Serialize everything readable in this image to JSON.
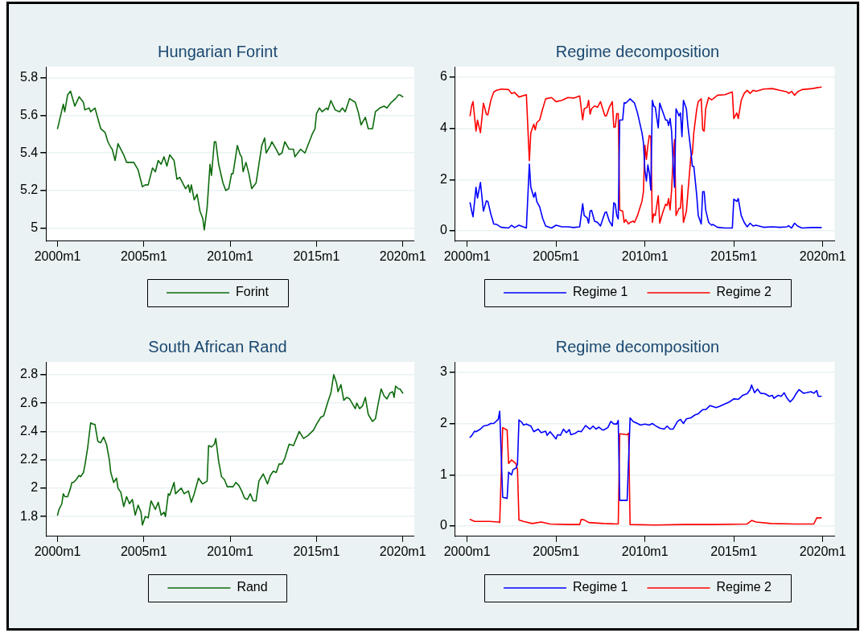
{
  "chart_data": [
    {
      "type": "line",
      "title": "Hungarian Forint",
      "marker": "none",
      "grid": "y",
      "legend": "bottom",
      "x": [
        "2000-01",
        "2000-05",
        "2000-06",
        "2000-08",
        "2000-10",
        "2001-01",
        "2001-04",
        "2001-07",
        "2001-08",
        "2001-11",
        "2001-12",
        "2002-03",
        "2002-07",
        "2002-10",
        "2002-12",
        "2003-02",
        "2003-03",
        "2003-05",
        "2003-07",
        "2003-11",
        "2004-01",
        "2004-06",
        "2004-09",
        "2004-12",
        "2005-02",
        "2005-04",
        "2005-07",
        "2005-09",
        "2005-11",
        "2006-01",
        "2006-03",
        "2006-05",
        "2006-07",
        "2006-10",
        "2006-12",
        "2007-02",
        "2007-06",
        "2007-08",
        "2007-09",
        "2007-10",
        "2007-12",
        "2008-02",
        "2008-04",
        "2008-06",
        "2008-07",
        "2008-09",
        "2008-11",
        "2008-12",
        "2009-02",
        "2009-03",
        "2009-05",
        "2009-08",
        "2009-10",
        "2009-12",
        "2010-02",
        "2010-03",
        "2010-06",
        "2010-08",
        "2010-09",
        "2010-10",
        "2010-12",
        "2011-02",
        "2011-04",
        "2011-05",
        "2011-07",
        "2011-09",
        "2011-11",
        "2012-01",
        "2012-02",
        "2012-05",
        "2012-06",
        "2012-09",
        "2012-11",
        "2013-01",
        "2013-03",
        "2013-06",
        "2013-09",
        "2013-10",
        "2013-12",
        "2014-02",
        "2014-05",
        "2014-08",
        "2014-10",
        "2014-12",
        "2015-01",
        "2015-03",
        "2015-05",
        "2015-08",
        "2015-09",
        "2015-11",
        "2016-02",
        "2016-05",
        "2016-07",
        "2016-09",
        "2016-12",
        "2017-04",
        "2017-06",
        "2017-08",
        "2017-11",
        "2018-01",
        "2018-04",
        "2018-06",
        "2018-09",
        "2018-12",
        "2019-02",
        "2019-05",
        "2019-08",
        "2019-10",
        "2019-11",
        "2020-01"
      ],
      "series": [
        {
          "name": "Forint",
          "color": "#0d6b0d",
          "values": [
            5.53,
            5.66,
            5.62,
            5.71,
            5.73,
            5.65,
            5.7,
            5.67,
            5.63,
            5.64,
            5.62,
            5.64,
            5.53,
            5.51,
            5.46,
            5.43,
            5.42,
            5.36,
            5.45,
            5.39,
            5.35,
            5.35,
            5.31,
            5.22,
            5.23,
            5.23,
            5.32,
            5.3,
            5.36,
            5.34,
            5.38,
            5.33,
            5.39,
            5.36,
            5.26,
            5.27,
            5.21,
            5.23,
            5.19,
            5.23,
            5.15,
            5.18,
            5.09,
            5.05,
            4.99,
            5.11,
            5.34,
            5.28,
            5.46,
            5.46,
            5.34,
            5.24,
            5.2,
            5.21,
            5.29,
            5.29,
            5.44,
            5.39,
            5.38,
            5.3,
            5.35,
            5.29,
            5.21,
            5.22,
            5.24,
            5.34,
            5.44,
            5.48,
            5.4,
            5.44,
            5.46,
            5.42,
            5.39,
            5.4,
            5.46,
            5.42,
            5.42,
            5.38,
            5.4,
            5.42,
            5.4,
            5.46,
            5.5,
            5.53,
            5.61,
            5.64,
            5.62,
            5.64,
            5.63,
            5.68,
            5.63,
            5.62,
            5.64,
            5.62,
            5.69,
            5.67,
            5.62,
            5.55,
            5.59,
            5.53,
            5.53,
            5.62,
            5.64,
            5.65,
            5.64,
            5.67,
            5.69,
            5.71,
            5.71,
            5.7
          ]
        }
      ],
      "xlim": [
        "1999-05",
        "2020-09"
      ],
      "xticks": [
        {
          "value": "2000-01",
          "label": "2000m1"
        },
        {
          "value": "2005-01",
          "label": "2005m1"
        },
        {
          "value": "2010-01",
          "label": "2010m1"
        },
        {
          "value": "2015-01",
          "label": "2015m1"
        },
        {
          "value": "2020-01",
          "label": "2020m1"
        }
      ],
      "ylim": [
        4.93,
        5.86
      ],
      "yticks": [
        5,
        5.2,
        5.4,
        5.6,
        5.8
      ]
    },
    {
      "type": "line",
      "title": "Regime decomposition",
      "marker": "none",
      "grid": "y",
      "legend": "bottom",
      "x": [
        "2000-03",
        "2000-04",
        "2000-05",
        "2000-07",
        "2000-08",
        "2000-10",
        "2000-12",
        "2001-02",
        "2001-03",
        "2001-05",
        "2001-07",
        "2001-09",
        "2001-12",
        "2002-05",
        "2002-07",
        "2002-09",
        "2002-12",
        "2003-05",
        "2003-07",
        "2003-08",
        "2003-10",
        "2003-11",
        "2003-12",
        "2004-02",
        "2004-04",
        "2004-06",
        "2004-10",
        "2005-01",
        "2005-05",
        "2005-09",
        "2006-01",
        "2006-05",
        "2006-07",
        "2006-08",
        "2006-10",
        "2006-11",
        "2006-12",
        "2007-01",
        "2007-03",
        "2007-05",
        "2007-07",
        "2007-10",
        "2007-11",
        "2008-01",
        "2008-03",
        "2008-04",
        "2008-05",
        "2008-06",
        "2008-07",
        "2008-08",
        "2008-10",
        "2008-11",
        "2008-12",
        "2009-02",
        "2009-03",
        "2009-05",
        "2009-06",
        "2009-08",
        "2009-11",
        "2009-12",
        "2010-01",
        "2010-02",
        "2010-03",
        "2010-04",
        "2010-05",
        "2010-06",
        "2010-07",
        "2010-08",
        "2010-10",
        "2010-11",
        "2011-01",
        "2011-03",
        "2011-04",
        "2011-05",
        "2011-06",
        "2011-07",
        "2011-08",
        "2011-09",
        "2011-10",
        "2011-12",
        "2012-01",
        "2012-02",
        "2012-03",
        "2012-05",
        "2012-06",
        "2012-08",
        "2012-09",
        "2012-10",
        "2012-12",
        "2013-01",
        "2013-03",
        "2013-04",
        "2013-05",
        "2013-06",
        "2013-08",
        "2013-10",
        "2013-11",
        "2014-02",
        "2014-07",
        "2014-12",
        "2015-01",
        "2015-03",
        "2015-04",
        "2015-06",
        "2015-08",
        "2015-10",
        "2015-12",
        "2016-02",
        "2016-04",
        "2016-09",
        "2017-03",
        "2017-08",
        "2018-01",
        "2018-02",
        "2018-04",
        "2018-06",
        "2018-08",
        "2018-11",
        "2019-06",
        "2019-12"
      ],
      "series": [
        {
          "name": "Regime 1",
          "color": "#0000ff",
          "values": [
            1.1,
            0.8,
            0.55,
            1.7,
            1.28,
            1.89,
            0.77,
            1.17,
            1.15,
            0.66,
            0.27,
            0.25,
            0.14,
            0.11,
            0.22,
            0.13,
            0.22,
            0.11,
            2.6,
            1.7,
            1.31,
            1.5,
            1.15,
            0.93,
            0.49,
            0.19,
            0.11,
            0.22,
            0.16,
            0.16,
            0.13,
            0.16,
            1.06,
            0.6,
            0.51,
            0.3,
            0.77,
            0.8,
            0.38,
            0.33,
            0.19,
            0.71,
            0.74,
            0.38,
            0.19,
            1.1,
            1.04,
            0.6,
            0.47,
            4.32,
            4.33,
            5.0,
            4.98,
            5.09,
            5.15,
            5.04,
            4.98,
            4.6,
            3.83,
            3.45,
            2.36,
            1.94,
            2.57,
            2.25,
            1.59,
            5.09,
            4.87,
            4.82,
            4.02,
            4.98,
            4.65,
            4.32,
            4.32,
            4.11,
            4.38,
            3.89,
            2.68,
            1.7,
            4.76,
            4.49,
            4.6,
            3.67,
            5.09,
            4.76,
            4.11,
            3.12,
            2.52,
            2.52,
            1.37,
            0.6,
            0.27,
            1.53,
            1.53,
            0.82,
            0.33,
            0.22,
            0.25,
            0.14,
            0.11,
            0.11,
            1.24,
            1.15,
            1.26,
            0.6,
            0.33,
            0.16,
            0.3,
            0.19,
            0.22,
            0.14,
            0.16,
            0.14,
            0.16,
            0.2,
            0.11,
            0.3,
            0.19,
            0.11,
            0.13,
            0.13
          ]
        },
        {
          "name": "Regime 2",
          "color": "#ff0000",
          "values": [
            4.49,
            4.87,
            5.04,
            3.89,
            4.32,
            3.83,
            4.98,
            4.55,
            4.52,
            5.09,
            5.42,
            5.48,
            5.53,
            5.51,
            5.36,
            5.4,
            5.22,
            5.31,
            2.74,
            3.83,
            4.16,
            3.94,
            4.22,
            4.33,
            4.76,
            5.15,
            5.2,
            5.04,
            5.09,
            5.2,
            5.18,
            5.26,
            4.33,
            4.76,
            4.82,
            5.09,
            4.55,
            4.76,
            4.87,
            4.82,
            5.04,
            4.49,
            4.49,
            4.82,
            5.04,
            4.05,
            4.05,
            4.57,
            4.57,
            0.82,
            0.77,
            0.33,
            0.44,
            0.27,
            0.33,
            0.38,
            0.33,
            0.6,
            1.15,
            1.53,
            3.34,
            2.79,
            3.34,
            3.72,
            3.67,
            0.33,
            0.66,
            0.6,
            1.37,
            0.3,
            0.71,
            1.04,
            0.99,
            1.26,
            0.82,
            1.59,
            2.79,
            3.56,
            0.6,
            0.88,
            0.88,
            1.78,
            0.33,
            0.77,
            1.48,
            2.9,
            3.01,
            3.83,
            4.76,
            5.04,
            5.15,
            3.94,
            3.89,
            4.76,
            5.2,
            5.11,
            5.15,
            5.29,
            5.31,
            5.42,
            4.38,
            4.6,
            4.38,
            5.09,
            5.36,
            5.48,
            5.36,
            5.48,
            5.44,
            5.53,
            5.55,
            5.48,
            5.42,
            5.36,
            5.44,
            5.29,
            5.42,
            5.51,
            5.55,
            5.61
          ]
        }
      ],
      "xlim": [
        "1999-05",
        "2020-09"
      ],
      "xticks": [
        {
          "value": "2000-01",
          "label": "2000m1"
        },
        {
          "value": "2005-01",
          "label": "2005m1"
        },
        {
          "value": "2010-01",
          "label": "2010m1"
        },
        {
          "value": "2015-01",
          "label": "2015m1"
        },
        {
          "value": "2020-01",
          "label": "2020m1"
        }
      ],
      "ylim": [
        -0.4,
        6.4
      ],
      "yticks": [
        0,
        2,
        4,
        6
      ]
    },
    {
      "type": "line",
      "title": "South African Rand",
      "marker": "none",
      "grid": "y",
      "legend": "bottom",
      "x": [
        "2000-01",
        "2000-02",
        "2000-04",
        "2000-05",
        "2000-06",
        "2000-08",
        "2000-10",
        "2000-11",
        "2000-12",
        "2001-02",
        "2001-04",
        "2001-05",
        "2001-07",
        "2001-08",
        "2001-10",
        "2001-12",
        "2002-02",
        "2002-03",
        "2002-05",
        "2002-07",
        "2002-09",
        "2002-11",
        "2003-01",
        "2003-02",
        "2003-04",
        "2003-06",
        "2003-07",
        "2003-09",
        "2003-11",
        "2004-01",
        "2004-03",
        "2004-05",
        "2004-07",
        "2004-09",
        "2004-11",
        "2004-12",
        "2005-02",
        "2005-04",
        "2005-06",
        "2005-08",
        "2005-09",
        "2005-11",
        "2006-01",
        "2006-03",
        "2006-04",
        "2006-06",
        "2006-07",
        "2006-10",
        "2006-11",
        "2007-01",
        "2007-03",
        "2007-05",
        "2007-08",
        "2007-10",
        "2007-12",
        "2008-03",
        "2008-05",
        "2008-06",
        "2008-09",
        "2008-10",
        "2008-12",
        "2009-02",
        "2009-03",
        "2009-05",
        "2009-07",
        "2009-09",
        "2009-11",
        "2010-02",
        "2010-03",
        "2010-05",
        "2010-07",
        "2010-09",
        "2010-11",
        "2011-01",
        "2011-03",
        "2011-05",
        "2011-07",
        "2011-09",
        "2011-12",
        "2012-03",
        "2012-05",
        "2012-07",
        "2012-09",
        "2012-11",
        "2013-01",
        "2013-03",
        "2013-06",
        "2013-09",
        "2014-01",
        "2014-04",
        "2014-07",
        "2014-11",
        "2015-01",
        "2015-04",
        "2015-06",
        "2015-09",
        "2015-11",
        "2016-01",
        "2016-03",
        "2016-04",
        "2016-06",
        "2016-08",
        "2016-10",
        "2016-12",
        "2017-04",
        "2017-05",
        "2017-07",
        "2017-09",
        "2017-11",
        "2018-01",
        "2018-04",
        "2018-06",
        "2018-08",
        "2018-10",
        "2018-12",
        "2019-02",
        "2019-04",
        "2019-06",
        "2019-07",
        "2019-08",
        "2019-10",
        "2019-11",
        "2020-01"
      ],
      "series": [
        {
          "name": "Rand",
          "color": "#0d6b0d",
          "values": [
            1.81,
            1.85,
            1.89,
            1.96,
            1.94,
            1.94,
            2.0,
            2.04,
            2.04,
            2.06,
            2.09,
            2.08,
            2.11,
            2.16,
            2.29,
            2.46,
            2.45,
            2.45,
            2.33,
            2.32,
            2.36,
            2.31,
            2.2,
            2.11,
            2.04,
            2.07,
            2.0,
            1.97,
            1.87,
            1.94,
            1.89,
            1.92,
            1.81,
            1.88,
            1.83,
            1.74,
            1.8,
            1.79,
            1.91,
            1.87,
            1.85,
            1.9,
            1.81,
            1.83,
            1.8,
            1.96,
            1.95,
            2.04,
            1.96,
            1.98,
            2.0,
            1.96,
            1.98,
            1.9,
            1.96,
            2.07,
            2.04,
            2.03,
            2.05,
            2.3,
            2.29,
            2.31,
            2.35,
            2.19,
            2.08,
            2.06,
            2.01,
            2.01,
            2.01,
            2.04,
            2.02,
            1.98,
            1.93,
            1.92,
            1.96,
            1.91,
            1.91,
            2.05,
            2.1,
            2.03,
            2.09,
            2.12,
            2.11,
            2.17,
            2.17,
            2.21,
            2.31,
            2.3,
            2.4,
            2.35,
            2.37,
            2.41,
            2.45,
            2.5,
            2.51,
            2.61,
            2.67,
            2.8,
            2.74,
            2.68,
            2.73,
            2.62,
            2.64,
            2.63,
            2.56,
            2.6,
            2.56,
            2.58,
            2.64,
            2.52,
            2.47,
            2.49,
            2.6,
            2.7,
            2.65,
            2.63,
            2.67,
            2.68,
            2.64,
            2.72,
            2.7,
            2.7,
            2.67
          ]
        }
      ],
      "xlim": [
        "1999-05",
        "2020-09"
      ],
      "xticks": [
        {
          "value": "2000-01",
          "label": "2000m1"
        },
        {
          "value": "2005-01",
          "label": "2005m1"
        },
        {
          "value": "2010-01",
          "label": "2010m1"
        },
        {
          "value": "2015-01",
          "label": "2015m1"
        },
        {
          "value": "2020-01",
          "label": "2020m1"
        }
      ],
      "ylim": [
        1.66,
        2.89
      ],
      "yticks": [
        1.8,
        2,
        2.2,
        2.4,
        2.6,
        2.8
      ]
    },
    {
      "type": "line",
      "title": "Regime decomposition",
      "marker": "none",
      "grid": "y",
      "legend": "bottom",
      "series": [
        {
          "name": "Regime 1",
          "color": "#0000ff",
          "x": [
            "2000-03",
            "2000-04",
            "2000-06",
            "2000-07",
            "2000-10",
            "2000-12",
            "2001-03",
            "2001-05",
            "2001-07",
            "2001-10",
            "2001-11",
            "2002-01",
            "2002-04",
            "2002-05",
            "2002-07",
            "2002-08",
            "2002-10",
            "2002-11",
            "2002-12",
            "2003-02",
            "2003-03",
            "2003-05",
            "2003-08",
            "2003-10",
            "2004-01",
            "2004-03",
            "2004-06",
            "2004-07",
            "2004-09",
            "2004-11",
            "2005-01",
            "2005-02",
            "2005-04",
            "2005-06",
            "2005-08",
            "2005-10",
            "2005-11",
            "2006-02",
            "2006-04",
            "2006-06",
            "2006-08",
            "2006-09",
            "2006-12",
            "2007-02",
            "2007-04",
            "2007-06",
            "2007-08",
            "2007-09",
            "2007-12",
            "2008-02",
            "2008-04",
            "2008-06",
            "2008-07",
            "2008-08",
            "2009-01",
            "2009-03",
            "2009-05",
            "2009-08",
            "2009-10",
            "2010-01",
            "2010-04",
            "2010-06",
            "2010-08",
            "2010-11",
            "2011-02",
            "2011-04",
            "2011-06",
            "2011-08",
            "2011-11",
            "2012-01",
            "2012-03",
            "2012-05",
            "2012-08",
            "2012-11",
            "2013-01",
            "2013-04",
            "2013-06",
            "2013-09",
            "2014-01",
            "2014-03",
            "2014-06",
            "2014-10",
            "2015-01",
            "2015-04",
            "2015-07",
            "2015-10",
            "2015-12",
            "2016-01",
            "2016-03",
            "2016-05",
            "2016-07",
            "2016-10",
            "2017-01",
            "2017-03",
            "2017-04",
            "2017-07",
            "2017-09",
            "2017-11",
            "2018-01",
            "2018-03",
            "2018-05",
            "2018-07",
            "2018-09",
            "2018-12",
            "2019-02",
            "2019-05",
            "2019-07",
            "2019-09",
            "2019-10",
            "2019-12"
          ],
          "values": [
            1.73,
            1.76,
            1.85,
            1.84,
            1.89,
            1.95,
            1.97,
            2.0,
            2.0,
            2.08,
            2.24,
            0.56,
            0.54,
            1.05,
            1.0,
            1.1,
            1.13,
            1.21,
            2.07,
            2.02,
            1.97,
            1.99,
            1.95,
            1.84,
            1.89,
            1.82,
            1.85,
            1.77,
            1.84,
            1.77,
            1.7,
            1.78,
            1.77,
            1.89,
            1.82,
            1.88,
            1.78,
            1.81,
            1.85,
            1.84,
            1.92,
            1.96,
            1.89,
            1.95,
            1.89,
            1.93,
            1.88,
            1.87,
            1.92,
            2.04,
            1.99,
            1.99,
            2.06,
            0.5,
            0.5,
            2.11,
            2.04,
            2.0,
            1.97,
            1.99,
            1.97,
            2.0,
            1.96,
            1.91,
            1.89,
            1.95,
            1.89,
            1.89,
            2.04,
            2.08,
            2.0,
            2.09,
            2.11,
            2.17,
            2.19,
            2.27,
            2.27,
            2.35,
            2.31,
            2.33,
            2.37,
            2.42,
            2.48,
            2.47,
            2.55,
            2.58,
            2.66,
            2.75,
            2.6,
            2.67,
            2.59,
            2.58,
            2.53,
            2.55,
            2.49,
            2.55,
            2.53,
            2.6,
            2.49,
            2.42,
            2.48,
            2.58,
            2.66,
            2.59,
            2.6,
            2.62,
            2.59,
            2.64,
            2.53,
            2.53
          ]
        },
        {
          "name": "Regime 2",
          "color": "#ff0000",
          "x": [
            "2000-03",
            "2000-06",
            "2000-10",
            "2001-04",
            "2001-10",
            "2001-11",
            "2002-01",
            "2002-04",
            "2002-05",
            "2002-07",
            "2002-10",
            "2002-11",
            "2002-12",
            "2003-03",
            "2003-09",
            "2004-03",
            "2004-09",
            "2005-09",
            "2006-05",
            "2006-06",
            "2006-08",
            "2006-11",
            "2007-09",
            "2008-07",
            "2008-08",
            "2009-01",
            "2009-02",
            "2009-03",
            "2010-08",
            "2012-03",
            "2013-11",
            "2015-10",
            "2016-01",
            "2016-04",
            "2017-02",
            "2018-06",
            "2019-07",
            "2019-09",
            "2019-12"
          ],
          "values": [
            0.13,
            0.09,
            0.09,
            0.09,
            0.08,
            0.07,
            1.92,
            1.87,
            1.22,
            1.29,
            1.22,
            1.1,
            0.12,
            0.09,
            0.05,
            0.08,
            0.04,
            0.03,
            0.03,
            0.13,
            0.12,
            0.07,
            0.05,
            0.04,
            1.8,
            1.78,
            1.81,
            0.03,
            0.02,
            0.03,
            0.03,
            0.04,
            0.11,
            0.08,
            0.05,
            0.04,
            0.04,
            0.16,
            0.16
          ]
        }
      ],
      "xlim": [
        "1999-05",
        "2020-09"
      ],
      "xticks": [
        {
          "value": "2000-01",
          "label": "2000m1"
        },
        {
          "value": "2005-01",
          "label": "2005m1"
        },
        {
          "value": "2010-01",
          "label": "2010m1"
        },
        {
          "value": "2015-01",
          "label": "2015m1"
        },
        {
          "value": "2020-01",
          "label": "2020m1"
        }
      ],
      "ylim": [
        -0.2,
        3.2
      ],
      "yticks": [
        0,
        1,
        2,
        3
      ]
    }
  ]
}
